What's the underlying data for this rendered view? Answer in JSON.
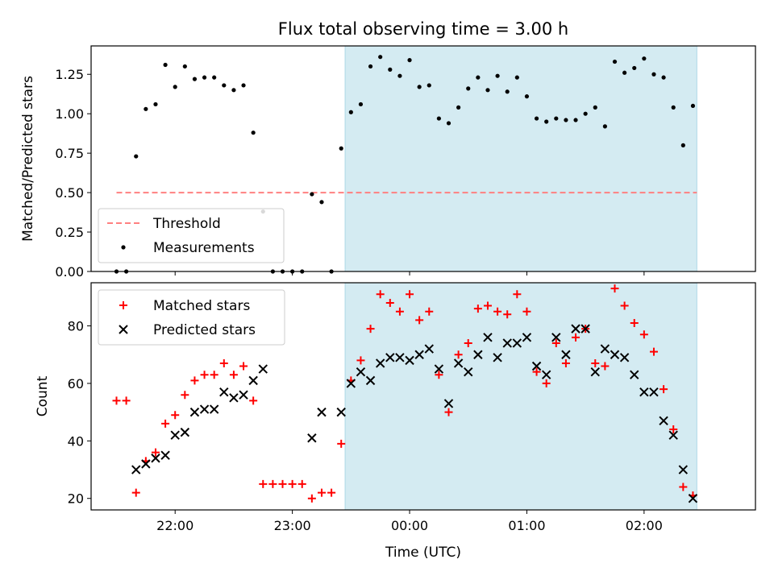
{
  "chart_data": [
    {
      "type": "scatter",
      "title": "Flux total observing time = 3.00 h",
      "xlabel": "",
      "ylabel": "Matched/Predicted stars",
      "ylim": [
        0,
        1.43
      ],
      "yticks": [
        "0.00",
        "0.25",
        "0.50",
        "0.75",
        "1.00",
        "1.25"
      ],
      "ytick_values": [
        0,
        0.25,
        0.5,
        0.75,
        1.0,
        1.25
      ],
      "x_time_range": [
        "21:17",
        "02:57"
      ],
      "shaded_span": [
        "23:27",
        "02:27"
      ],
      "shaded_color": "#add8e6",
      "legend": {
        "position": "lower-left",
        "items": [
          "Threshold",
          "Measurements"
        ]
      },
      "threshold": {
        "name": "Threshold",
        "value": 0.5,
        "x_start": "21:30",
        "x_end": "02:27",
        "color": "#ff8080",
        "style": "dashed"
      },
      "series": [
        {
          "name": "Measurements",
          "marker": "dot",
          "color": "#000000",
          "x": [
            "21:30",
            "21:35",
            "21:40",
            "21:45",
            "21:50",
            "21:55",
            "22:00",
            "22:05",
            "22:10",
            "22:15",
            "22:20",
            "22:25",
            "22:30",
            "22:35",
            "22:40",
            "22:45",
            "22:50",
            "22:55",
            "23:00",
            "23:05",
            "23:10",
            "23:15",
            "23:20",
            "23:25",
            "23:30",
            "23:35",
            "23:40",
            "23:45",
            "23:50",
            "23:55",
            "00:00",
            "00:05",
            "00:10",
            "00:15",
            "00:20",
            "00:25",
            "00:30",
            "00:35",
            "00:40",
            "00:45",
            "00:50",
            "00:55",
            "01:00",
            "01:05",
            "01:10",
            "01:15",
            "01:20",
            "01:25",
            "01:30",
            "01:35",
            "01:40",
            "01:45",
            "01:50",
            "01:55",
            "02:00",
            "02:05",
            "02:10",
            "02:15",
            "02:20",
            "02:25"
          ],
          "y": [
            0.0,
            0.0,
            0.73,
            1.03,
            1.06,
            1.31,
            1.17,
            1.3,
            1.22,
            1.23,
            1.23,
            1.18,
            1.15,
            1.18,
            0.88,
            0.38,
            0.0,
            0.0,
            0.0,
            0.0,
            0.49,
            0.44,
            0.0,
            0.78,
            1.01,
            1.06,
            1.3,
            1.36,
            1.28,
            1.24,
            1.34,
            1.17,
            1.18,
            0.97,
            0.94,
            1.04,
            1.16,
            1.23,
            1.15,
            1.24,
            1.14,
            1.23,
            1.11,
            0.97,
            0.95,
            0.97,
            0.96,
            0.96,
            1.0,
            1.04,
            0.92,
            1.33,
            1.26,
            1.29,
            1.35,
            1.25,
            1.23,
            1.04,
            0.8,
            1.05
          ]
        }
      ]
    },
    {
      "type": "scatter",
      "title": "",
      "xlabel": "Time (UTC)",
      "ylabel": "Count",
      "ylim": [
        16,
        95
      ],
      "yticks": [
        "20",
        "40",
        "60",
        "80"
      ],
      "ytick_values": [
        20,
        40,
        60,
        80
      ],
      "xticks": [
        "22:00",
        "23:00",
        "00:00",
        "01:00",
        "02:00"
      ],
      "x_time_range": [
        "21:17",
        "02:57"
      ],
      "shaded_span": [
        "23:27",
        "02:27"
      ],
      "shaded_color": "#add8e6",
      "legend": {
        "position": "upper-left",
        "items": [
          "Matched stars",
          "Predicted stars"
        ]
      },
      "series": [
        {
          "name": "Matched stars",
          "marker": "plus",
          "color": "#ff0000",
          "x": [
            "21:30",
            "21:35",
            "21:40",
            "21:45",
            "21:50",
            "21:55",
            "22:00",
            "22:05",
            "22:10",
            "22:15",
            "22:20",
            "22:25",
            "22:30",
            "22:35",
            "22:40",
            "22:45",
            "22:50",
            "22:55",
            "23:00",
            "23:05",
            "23:10",
            "23:15",
            "23:20",
            "23:25",
            "23:30",
            "23:35",
            "23:40",
            "23:45",
            "23:50",
            "23:55",
            "00:00",
            "00:05",
            "00:10",
            "00:15",
            "00:20",
            "00:25",
            "00:30",
            "00:35",
            "00:40",
            "00:45",
            "00:50",
            "00:55",
            "01:00",
            "01:05",
            "01:10",
            "01:15",
            "01:20",
            "01:25",
            "01:30",
            "01:35",
            "01:40",
            "01:45",
            "01:50",
            "01:55",
            "02:00",
            "02:05",
            "02:10",
            "02:15",
            "02:20",
            "02:25"
          ],
          "y": [
            54,
            54,
            22,
            33,
            36,
            46,
            49,
            56,
            61,
            63,
            63,
            67,
            63,
            66,
            54,
            25,
            25,
            25,
            25,
            25,
            20,
            22,
            22,
            39,
            61,
            68,
            79,
            91,
            88,
            85,
            91,
            82,
            85,
            63,
            50,
            70,
            74,
            86,
            87,
            85,
            84,
            91,
            85,
            64,
            60,
            74,
            67,
            76,
            79,
            67,
            66,
            93,
            87,
            81,
            77,
            71,
            58,
            44,
            24,
            21
          ]
        },
        {
          "name": "Predicted stars",
          "marker": "x",
          "color": "#000000",
          "x": [
            "21:40",
            "21:45",
            "21:50",
            "21:55",
            "22:00",
            "22:05",
            "22:10",
            "22:15",
            "22:20",
            "22:25",
            "22:30",
            "22:35",
            "22:40",
            "22:45",
            "23:10",
            "23:15",
            "23:25",
            "23:30",
            "23:35",
            "23:40",
            "23:45",
            "23:50",
            "23:55",
            "00:00",
            "00:05",
            "00:10",
            "00:15",
            "00:20",
            "00:25",
            "00:30",
            "00:35",
            "00:40",
            "00:45",
            "00:50",
            "00:55",
            "01:00",
            "01:05",
            "01:10",
            "01:15",
            "01:20",
            "01:25",
            "01:30",
            "01:35",
            "01:40",
            "01:45",
            "01:50",
            "01:55",
            "02:00",
            "02:05",
            "02:10",
            "02:15",
            "02:20",
            "02:25"
          ],
          "y": [
            30,
            32,
            34,
            35,
            42,
            43,
            50,
            51,
            51,
            57,
            55,
            56,
            61,
            65,
            41,
            50,
            50,
            60,
            64,
            61,
            67,
            69,
            69,
            68,
            70,
            72,
            65,
            53,
            67,
            64,
            70,
            76,
            69,
            74,
            74,
            76,
            66,
            63,
            76,
            70,
            79,
            79,
            64,
            72,
            70,
            69,
            63,
            57,
            57,
            47,
            42,
            30,
            20
          ]
        }
      ]
    }
  ]
}
